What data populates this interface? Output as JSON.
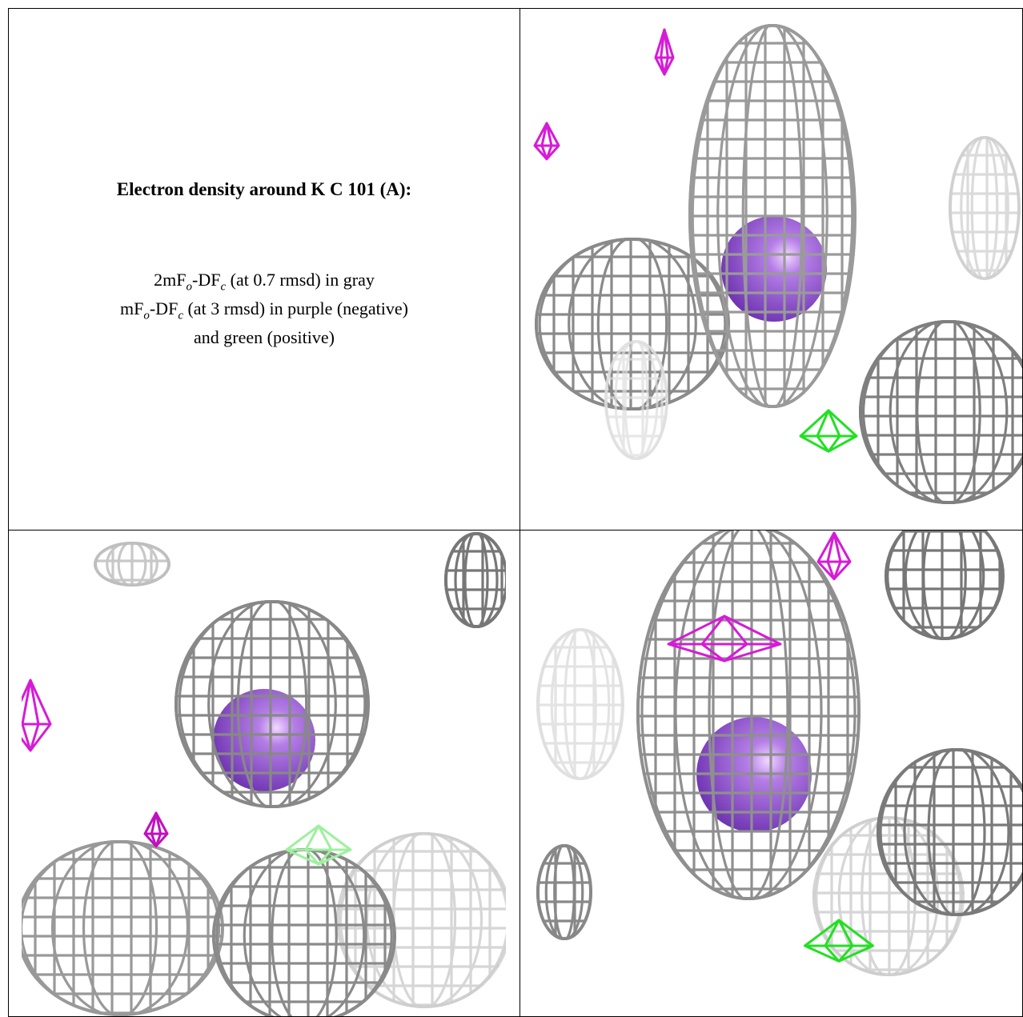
{
  "caption": {
    "title": "Electron density around K C 101 (A):",
    "lines": [
      [
        "2mF",
        "o",
        "-DF",
        "c",
        " (at 0.7 rmsd) in gray"
      ],
      [
        "mF",
        "o",
        "-DF",
        "c",
        " (at 3 rmsd) in purple (negative)"
      ],
      [
        "and green (positive)"
      ]
    ]
  }
}
